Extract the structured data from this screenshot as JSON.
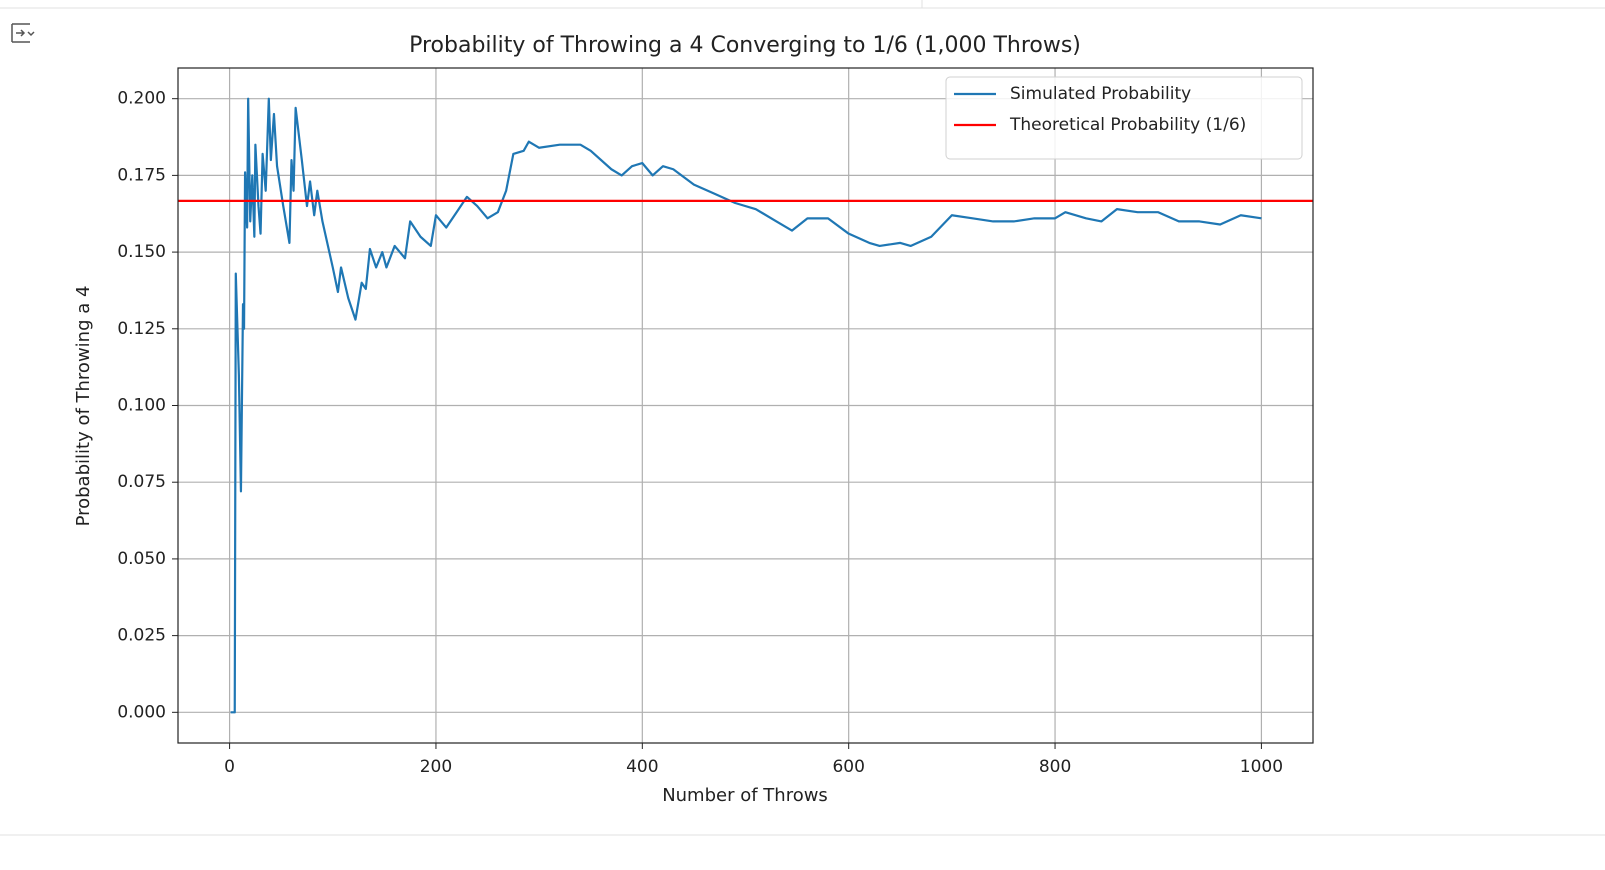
{
  "chart_data": {
    "type": "line",
    "title": "Probability of Throwing a 4 Converging to 1/6 (1,000 Throws)",
    "x_label": "Number of Throws",
    "y_label": "Probability of Throwing a 4",
    "xlim": [
      -50,
      1050
    ],
    "ylim": [
      -0.01,
      0.21
    ],
    "xticks": [
      0,
      200,
      400,
      600,
      800,
      1000
    ],
    "yticks": [
      {
        "value": 0,
        "label": "0.000"
      },
      {
        "value": 0.025,
        "label": "0.025"
      },
      {
        "value": 0.05,
        "label": "0.050"
      },
      {
        "value": 0.075,
        "label": "0.075"
      },
      {
        "value": 0.1,
        "label": "0.100"
      },
      {
        "value": 0.125,
        "label": "0.125"
      },
      {
        "value": 0.15,
        "label": "0.150"
      },
      {
        "value": 0.175,
        "label": "0.175"
      },
      {
        "value": 0.2,
        "label": "0.200"
      }
    ],
    "grid": true,
    "legend": "upper right",
    "series": [
      {
        "name": "Simulated Probability",
        "color": "#1f77b4",
        "x": [
          1,
          5,
          6,
          9,
          11,
          13,
          14,
          15,
          17,
          18,
          20,
          22,
          24,
          25,
          28,
          30,
          32,
          35,
          37,
          38,
          40,
          43,
          46,
          52,
          58,
          60,
          62,
          64,
          70,
          75,
          78,
          82,
          85,
          90,
          100,
          105,
          108,
          115,
          122,
          128,
          132,
          136,
          142,
          148,
          152,
          160,
          170,
          175,
          185,
          195,
          200,
          205,
          210,
          220,
          230,
          240,
          250,
          260,
          268,
          275,
          285,
          290,
          300,
          320,
          340,
          350,
          370,
          380,
          390,
          400,
          410,
          420,
          430,
          450,
          470,
          490,
          510,
          530,
          545,
          560,
          580,
          600,
          620,
          630,
          650,
          660,
          680,
          700,
          720,
          740,
          760,
          780,
          800,
          810,
          830,
          845,
          860,
          880,
          900,
          920,
          940,
          960,
          980,
          1000
        ],
        "values": [
          0,
          0,
          0.143,
          0.11,
          0.072,
          0.133,
          0.125,
          0.176,
          0.158,
          0.2,
          0.16,
          0.175,
          0.155,
          0.185,
          0.165,
          0.156,
          0.182,
          0.17,
          0.19,
          0.2,
          0.18,
          0.195,
          0.178,
          0.165,
          0.153,
          0.18,
          0.17,
          0.197,
          0.18,
          0.165,
          0.173,
          0.162,
          0.17,
          0.16,
          0.145,
          0.137,
          0.145,
          0.135,
          0.128,
          0.14,
          0.138,
          0.151,
          0.145,
          0.15,
          0.145,
          0.152,
          0.148,
          0.16,
          0.155,
          0.152,
          0.162,
          0.16,
          0.158,
          0.163,
          0.168,
          0.165,
          0.161,
          0.163,
          0.17,
          0.182,
          0.183,
          0.186,
          0.184,
          0.185,
          0.185,
          0.183,
          0.177,
          0.175,
          0.178,
          0.179,
          0.175,
          0.178,
          0.177,
          0.172,
          0.169,
          0.166,
          0.164,
          0.16,
          0.157,
          0.161,
          0.161,
          0.156,
          0.153,
          0.152,
          0.153,
          0.152,
          0.155,
          0.162,
          0.161,
          0.16,
          0.16,
          0.161,
          0.161,
          0.163,
          0.161,
          0.16,
          0.164,
          0.163,
          0.163,
          0.16,
          0.16,
          0.159,
          0.162,
          0.161
        ]
      }
    ],
    "reference": {
      "name": "Theoretical Probability (1/6)",
      "color": "#ff0000",
      "value": 0.1667
    }
  }
}
